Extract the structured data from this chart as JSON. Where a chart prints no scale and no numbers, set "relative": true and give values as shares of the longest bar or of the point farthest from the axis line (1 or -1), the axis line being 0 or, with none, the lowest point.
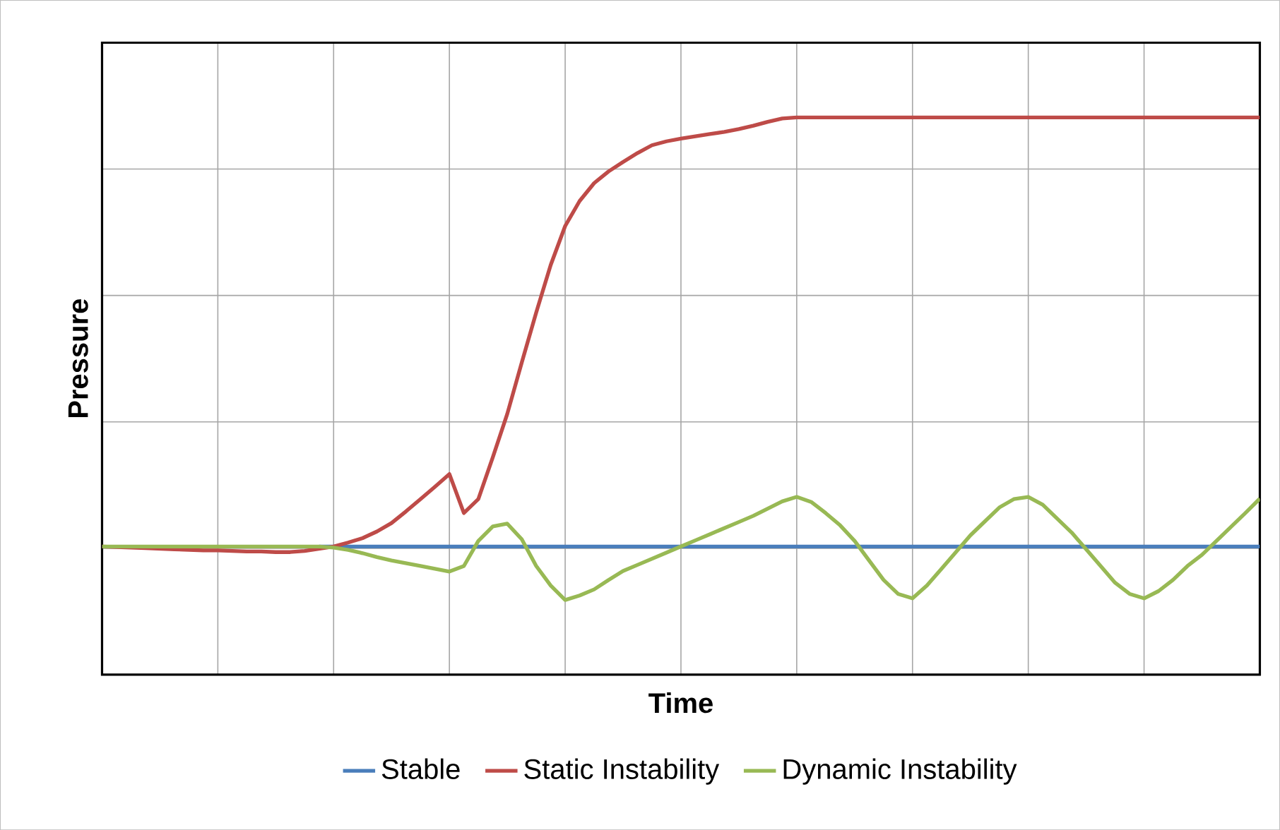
{
  "chart_data": {
    "type": "line",
    "relative": true,
    "xlabel": "Time",
    "ylabel": "Pressure",
    "categories": [
      null,
      null,
      null,
      null,
      null,
      null,
      null,
      null,
      null,
      null,
      null,
      null,
      null,
      null,
      null,
      null,
      null,
      null,
      null,
      null,
      null,
      null,
      null,
      null,
      null,
      null,
      null,
      null,
      null,
      null,
      null,
      null,
      null,
      null,
      null,
      null,
      null,
      null,
      null,
      null,
      null,
      null,
      null,
      null,
      null,
      null,
      null,
      null,
      null,
      null,
      null,
      null,
      null,
      null,
      null,
      null,
      null,
      null,
      null,
      null,
      null,
      null,
      null,
      null,
      null,
      null,
      null,
      null,
      null,
      null,
      null,
      null,
      null,
      null,
      null,
      null,
      null,
      null,
      null,
      null,
      null
    ],
    "grid": true,
    "legend": "bottom",
    "line_style": "solid",
    "marker": "none",
    "series": [
      {
        "name": "Stable",
        "color": "#4a7ebb",
        "values": [
          null,
          null,
          null,
          null,
          null,
          null,
          null,
          null,
          null,
          null,
          null,
          null,
          null,
          null,
          null,
          0.23,
          0.23,
          0.23,
          0.23,
          0.23,
          0.23,
          0.23,
          0.23,
          0.23,
          0.23,
          0.23,
          0.23,
          0.23,
          0.23,
          0.23,
          0.23,
          0.23,
          0.23,
          0.23,
          0.23,
          0.23,
          0.23,
          0.23,
          0.23,
          0.23,
          0.23,
          0.23,
          0.23,
          0.23,
          0.23,
          0.23,
          0.23,
          0.23,
          0.23,
          0.23,
          0.23,
          0.23,
          0.23,
          0.23,
          0.23,
          0.23,
          0.23,
          0.23,
          0.23,
          0.23,
          0.23,
          0.23,
          0.23,
          0.23,
          0.23,
          0.23,
          0.23,
          0.23,
          0.23,
          0.23,
          0.23,
          0.23,
          0.23,
          0.23,
          0.23,
          0.23,
          0.23,
          0.23,
          0.23,
          0.23,
          0.23
        ]
      },
      {
        "name": "Static Instability",
        "color": "#be4b48",
        "values": [
          0.23,
          0.229,
          0.228,
          0.227,
          0.226,
          0.225,
          0.224,
          0.223,
          0.223,
          0.222,
          0.221,
          0.221,
          0.22,
          0.22,
          0.222,
          0.226,
          0.23,
          0.237,
          0.245,
          0.257,
          0.272,
          0.293,
          0.315,
          0.337,
          0.36,
          0.29,
          0.315,
          0.39,
          0.468,
          0.56,
          0.65,
          0.735,
          0.805,
          0.85,
          0.882,
          0.903,
          0.92,
          0.936,
          0.95,
          0.957,
          0.962,
          0.966,
          0.97,
          0.974,
          0.979,
          0.985,
          0.992,
          0.998,
          1.0,
          1.0,
          1.0,
          1.0,
          1.0,
          1.0,
          1.0,
          1.0,
          1.0,
          1.0,
          1.0,
          1.0,
          1.0,
          1.0,
          1.0,
          1.0,
          1.0,
          1.0,
          1.0,
          1.0,
          1.0,
          1.0,
          1.0,
          1.0,
          1.0,
          1.0,
          1.0,
          1.0,
          1.0,
          1.0,
          1.0,
          1.0,
          1.0
        ]
      },
      {
        "name": "Dynamic Instability",
        "color": "#98b954",
        "values": [
          0.23,
          0.23,
          0.23,
          0.23,
          0.23,
          0.23,
          0.23,
          0.23,
          0.23,
          0.23,
          0.23,
          0.23,
          0.23,
          0.23,
          0.23,
          0.23,
          0.228,
          0.224,
          0.218,
          0.211,
          0.205,
          0.2,
          0.195,
          0.19,
          0.185,
          0.195,
          0.24,
          0.266,
          0.271,
          0.243,
          0.195,
          0.16,
          0.134,
          0.142,
          0.153,
          0.17,
          0.186,
          0.197,
          0.208,
          0.219,
          0.23,
          0.241,
          0.252,
          0.263,
          0.274,
          0.285,
          0.298,
          0.311,
          0.319,
          0.31,
          0.29,
          0.268,
          0.24,
          0.205,
          0.17,
          0.145,
          0.137,
          0.16,
          0.19,
          0.22,
          0.25,
          0.275,
          0.3,
          0.315,
          0.319,
          0.305,
          0.28,
          0.255,
          0.225,
          0.195,
          0.165,
          0.145,
          0.137,
          0.15,
          0.17,
          0.195,
          0.215,
          0.24,
          0.265,
          0.29,
          0.316
        ]
      }
    ]
  }
}
